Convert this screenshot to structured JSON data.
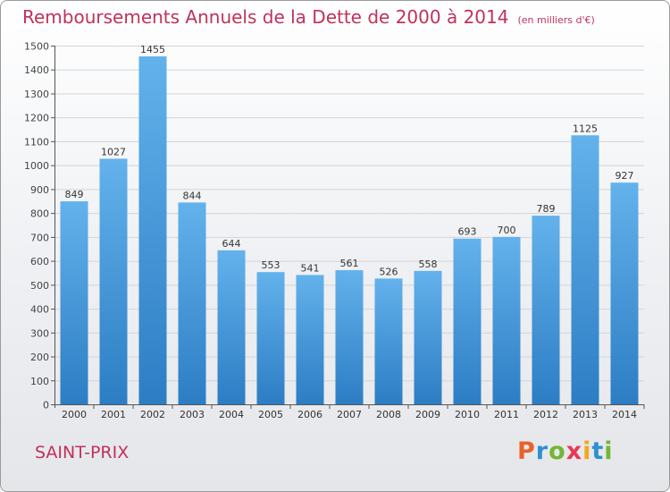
{
  "header": {
    "title": "Remboursements Annuels de la Dette de 2000 à 2014",
    "unit": "(en milliers d'€)"
  },
  "footer": {
    "commune": "SAINT-PRIX",
    "logo": "Proxiti"
  },
  "colors": {
    "title": "#c0325a",
    "bar_top": "#63b2ec",
    "bar_bottom": "#2c7dc4",
    "grid": "#d4d4d4"
  },
  "chart_data": {
    "type": "bar",
    "title": "Remboursements Annuels de la Dette de 2000 à 2014",
    "ylabel": "",
    "xlabel": "",
    "categories": [
      "2000",
      "2001",
      "2002",
      "2003",
      "2004",
      "2005",
      "2006",
      "2007",
      "2008",
      "2009",
      "2010",
      "2011",
      "2012",
      "2013",
      "2014"
    ],
    "values": [
      849,
      1027,
      1455,
      844,
      644,
      553,
      541,
      561,
      526,
      558,
      693,
      700,
      789,
      1125,
      927
    ],
    "ylim": [
      0,
      1500
    ],
    "yticks": [
      0,
      100,
      200,
      300,
      400,
      500,
      600,
      700,
      800,
      900,
      1000,
      1100,
      1200,
      1300,
      1400,
      1500
    ],
    "grid": true,
    "data_labels": true
  }
}
